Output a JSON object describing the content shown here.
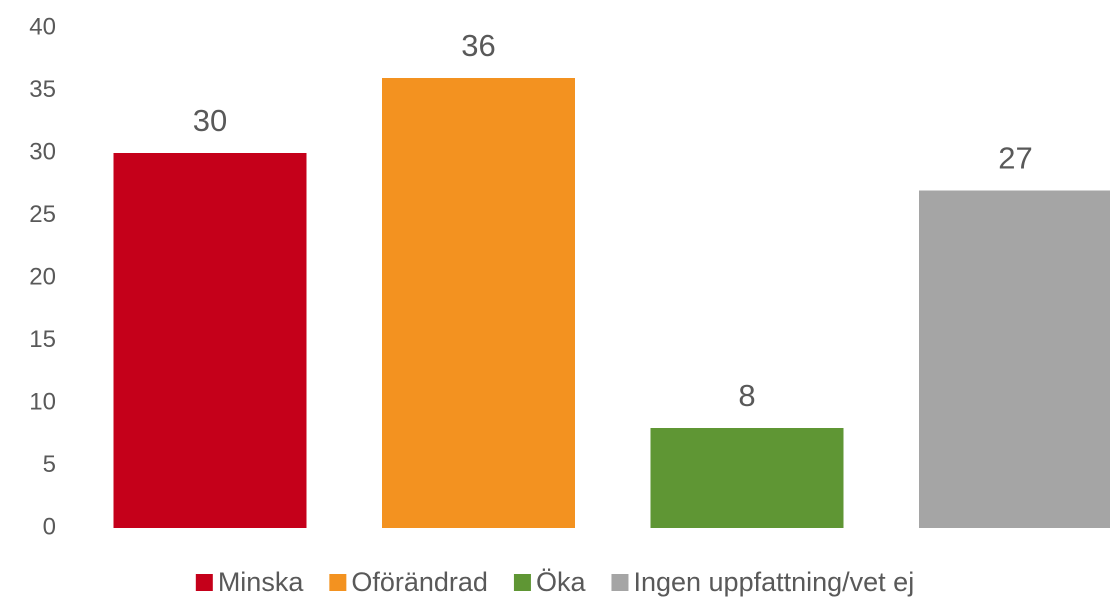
{
  "chart_data": {
    "type": "bar",
    "categories": [
      null
    ],
    "series": [
      {
        "name": "Minska",
        "color": "#c5001a",
        "values": [
          30
        ]
      },
      {
        "name": "Oförändrad",
        "color": "#f39220",
        "values": [
          36
        ]
      },
      {
        "name": "Öka",
        "color": "#5f9634",
        "values": [
          8
        ]
      },
      {
        "name": "Ingen uppfattning/vet ej",
        "color": "#a5a5a5",
        "values": [
          27
        ]
      }
    ],
    "ylim": [
      0,
      40
    ],
    "yticks": [
      0,
      5,
      10,
      15,
      20,
      25,
      30,
      35,
      40
    ],
    "grid": false,
    "legend": "bottom"
  }
}
